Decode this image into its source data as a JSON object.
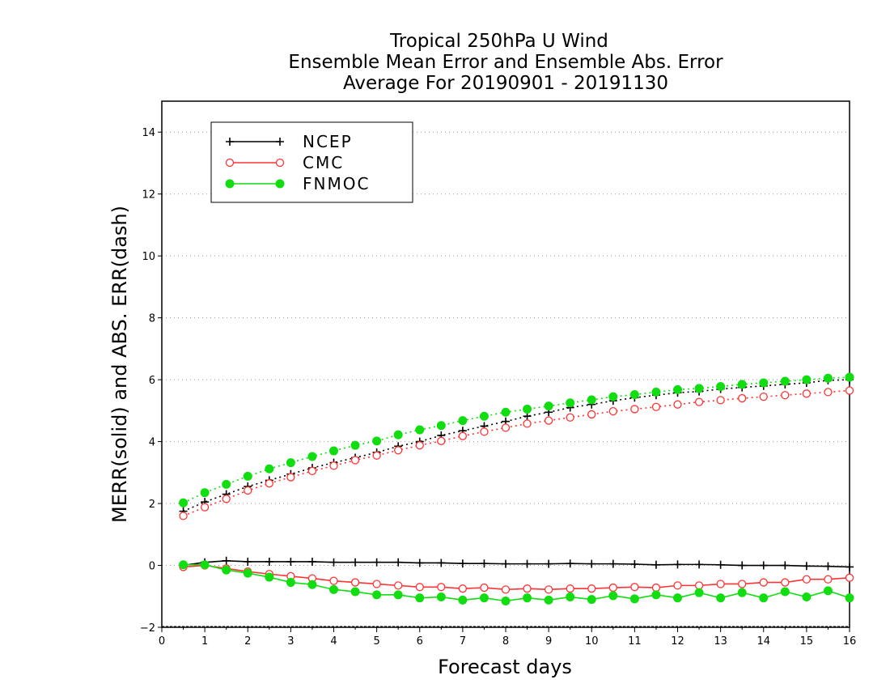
{
  "chart_data": {
    "type": "line",
    "title_lines": [
      "Tropical 250hPa U Wind",
      "Ensemble Mean Error and Ensemble Abs. Error",
      "Average For 20190901 - 20191130"
    ],
    "xlabel": "Forecast days",
    "ylabel": "MERR(solid) and ABS. ERR(dash)",
    "xlim": [
      0,
      16
    ],
    "ylim": [
      -2,
      15
    ],
    "x_ticks": [
      0,
      1,
      2,
      3,
      4,
      5,
      6,
      7,
      8,
      9,
      10,
      11,
      12,
      13,
      14,
      15,
      16
    ],
    "y_ticks": [
      -2,
      0,
      2,
      4,
      6,
      8,
      10,
      12,
      14
    ],
    "grid": "horizontal dotted",
    "legend_position": "top-left",
    "x": [
      0.5,
      1.0,
      1.5,
      2.0,
      2.5,
      3.0,
      3.5,
      4.0,
      4.5,
      5.0,
      5.5,
      6.0,
      6.5,
      7.0,
      7.5,
      8.0,
      8.5,
      9.0,
      9.5,
      10.0,
      10.5,
      11.0,
      11.5,
      12.0,
      12.5,
      13.0,
      13.5,
      14.0,
      14.5,
      15.0,
      15.5,
      16.0
    ],
    "series": [
      {
        "name": "NCEP",
        "color": "#000000",
        "marker": "plus",
        "merr": [
          0.0,
          0.1,
          0.15,
          0.12,
          0.12,
          0.12,
          0.12,
          0.1,
          0.1,
          0.1,
          0.1,
          0.08,
          0.08,
          0.06,
          0.06,
          0.05,
          0.05,
          0.05,
          0.06,
          0.05,
          0.05,
          0.04,
          0.02,
          0.03,
          0.03,
          0.02,
          0.0,
          0.0,
          0.0,
          -0.02,
          -0.03,
          -0.05
        ],
        "abs_err": [
          1.75,
          2.05,
          2.3,
          2.55,
          2.75,
          2.95,
          3.15,
          3.32,
          3.48,
          3.65,
          3.85,
          4.0,
          4.2,
          4.35,
          4.5,
          4.65,
          4.82,
          4.95,
          5.1,
          5.2,
          5.32,
          5.42,
          5.5,
          5.58,
          5.62,
          5.7,
          5.75,
          5.8,
          5.85,
          5.9,
          5.98,
          6.0
        ]
      },
      {
        "name": "CMC",
        "color": "#ff3333",
        "marker": "open-circle",
        "merr": [
          -0.05,
          0.0,
          -0.1,
          -0.2,
          -0.28,
          -0.35,
          -0.42,
          -0.5,
          -0.55,
          -0.6,
          -0.65,
          -0.7,
          -0.7,
          -0.75,
          -0.72,
          -0.78,
          -0.75,
          -0.78,
          -0.75,
          -0.75,
          -0.72,
          -0.7,
          -0.72,
          -0.65,
          -0.65,
          -0.6,
          -0.6,
          -0.55,
          -0.55,
          -0.45,
          -0.45,
          -0.4
        ],
        "abs_err": [
          1.6,
          1.88,
          2.15,
          2.42,
          2.65,
          2.85,
          3.05,
          3.22,
          3.4,
          3.55,
          3.72,
          3.88,
          4.02,
          4.18,
          4.32,
          4.45,
          4.58,
          4.68,
          4.78,
          4.88,
          4.98,
          5.05,
          5.12,
          5.2,
          5.28,
          5.34,
          5.4,
          5.45,
          5.5,
          5.55,
          5.6,
          5.65
        ]
      },
      {
        "name": "FNMOC",
        "color": "#11dd11",
        "marker": "filled-circle",
        "merr": [
          0.02,
          0.02,
          -0.15,
          -0.25,
          -0.38,
          -0.55,
          -0.62,
          -0.78,
          -0.85,
          -0.95,
          -0.95,
          -1.05,
          -1.02,
          -1.12,
          -1.05,
          -1.15,
          -1.05,
          -1.12,
          -1.02,
          -1.1,
          -0.98,
          -1.08,
          -0.95,
          -1.05,
          -0.88,
          -1.05,
          -0.88,
          -1.05,
          -0.85,
          -1.02,
          -0.82,
          -1.05
        ],
        "abs_err": [
          2.02,
          2.35,
          2.62,
          2.88,
          3.12,
          3.32,
          3.52,
          3.7,
          3.88,
          4.02,
          4.22,
          4.38,
          4.52,
          4.68,
          4.82,
          4.95,
          5.05,
          5.15,
          5.25,
          5.35,
          5.45,
          5.52,
          5.6,
          5.68,
          5.72,
          5.78,
          5.85,
          5.9,
          5.95,
          6.0,
          6.05,
          6.08
        ]
      }
    ]
  }
}
